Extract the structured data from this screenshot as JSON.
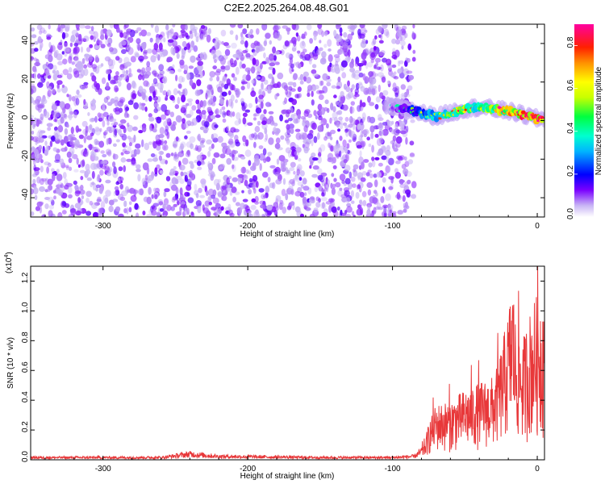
{
  "title": "C2E2.2025.264.08.48.G01",
  "chart_data": [
    {
      "type": "heatmap",
      "name": "spectrogram",
      "xlabel": "Height of straight line (km)",
      "ylabel": "Frequency (Hz)",
      "xlim": [
        -350,
        5
      ],
      "ylim": [
        -50,
        50
      ],
      "xticks": [
        -300,
        -200,
        -100,
        0
      ],
      "yticks": [
        -40,
        -20,
        0,
        20,
        40
      ],
      "colorbar": {
        "label": "Normalized spectral amplitude",
        "range": [
          0,
          0.9
        ],
        "ticks": [
          0.0,
          0.2,
          0.4,
          0.6,
          0.8
        ],
        "tick_labels": [
          "0.0",
          "0.2",
          "0.4",
          "0.6",
          "0.8"
        ]
      },
      "noise_region": {
        "x_range": [
          -350,
          -85
        ],
        "amplitude_range": [
          0.05,
          0.15
        ]
      },
      "signal_track": {
        "x": [
          -100,
          -90,
          -80,
          -70,
          -60,
          -50,
          -40,
          -30,
          -20,
          -10,
          0,
          5
        ],
        "freq": [
          7,
          6,
          4,
          2,
          4,
          6,
          7,
          6,
          5,
          3,
          1,
          1
        ],
        "amplitude": [
          0.1,
          0.2,
          0.3,
          0.45,
          0.55,
          0.6,
          0.55,
          0.65,
          0.75,
          0.85,
          0.9,
          0.8
        ]
      }
    },
    {
      "type": "line",
      "name": "snr",
      "xlabel": "Height of straight line (km)",
      "ylabel": "SNR (10 * v/v)",
      "multiplier": "(x10^4)",
      "multiplier_base": "(x10",
      "multiplier_exp": "4",
      "multiplier_close": ")",
      "xlim": [
        -350,
        5
      ],
      "ylim": [
        0,
        1.3
      ],
      "xticks": [
        -300,
        -200,
        -100,
        0
      ],
      "yticks": [
        0.0,
        0.2,
        0.4,
        0.6,
        0.8,
        1.0,
        1.2
      ],
      "ytick_labels": [
        "0.0",
        "0.2",
        "0.4",
        "0.6",
        "0.8",
        "1.0",
        "1.2"
      ],
      "color": "#e8383a",
      "envelope": {
        "x": [
          -350,
          -260,
          -240,
          -220,
          -150,
          -100,
          -85,
          -78,
          -75,
          -70,
          -60,
          -50,
          -40,
          -30,
          -25,
          -20,
          -17,
          -15,
          -10,
          -5,
          0,
          5
        ],
        "y": [
          0.02,
          0.02,
          0.05,
          0.03,
          0.02,
          0.02,
          0.03,
          0.09,
          0.2,
          0.3,
          0.32,
          0.38,
          0.42,
          0.45,
          0.6,
          0.8,
          1.0,
          0.75,
          0.65,
          0.8,
          0.9,
          0.9
        ]
      }
    }
  ]
}
